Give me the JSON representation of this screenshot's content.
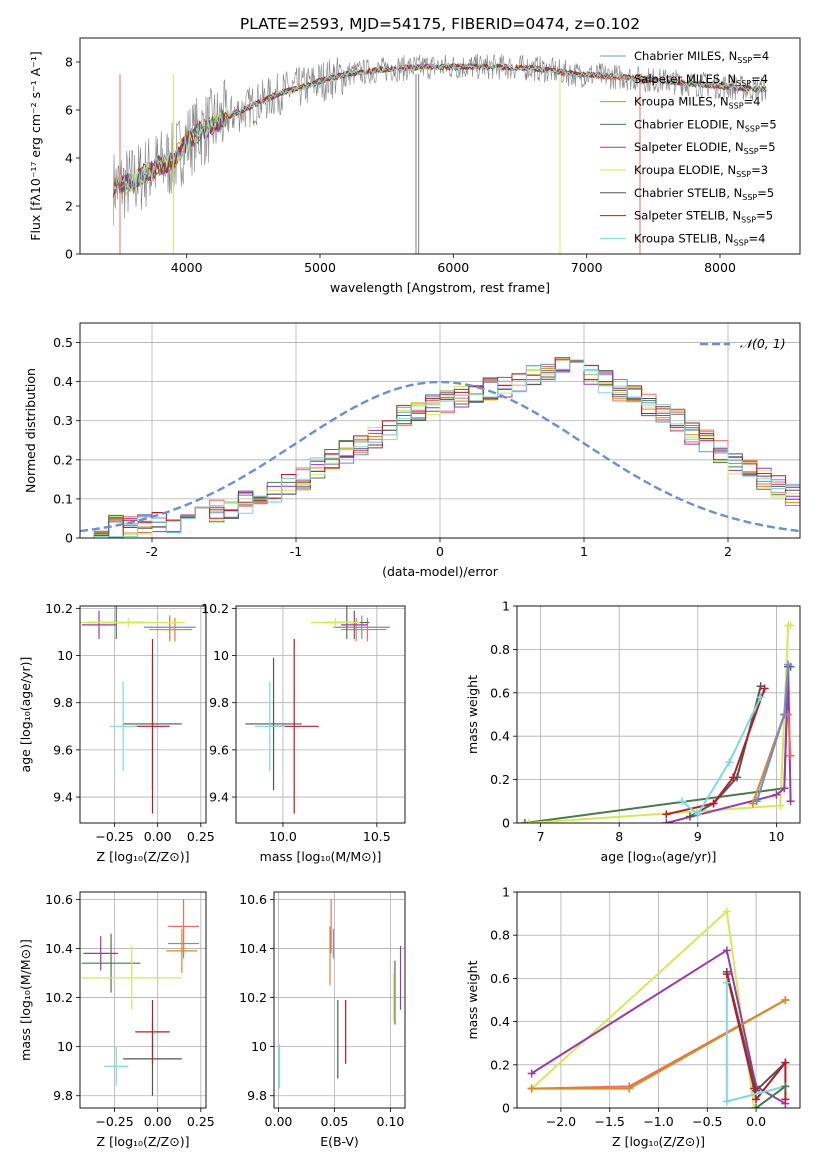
{
  "title": "PLATE=2593, MJD=54175, FIBERID=0474, z=0.102",
  "series_colors": {
    "Chabrier MILES": "#6c8fd0",
    "Salpeter MILES": "#e8735a",
    "Kroupa MILES": "#d98a2a",
    "Chabrier ELODIE": "#4a7a4a",
    "Salpeter ELODIE": "#9a3aa8",
    "Kroupa ELODIE": "#d4e85a",
    "Chabrier STELIB": "#555555",
    "Salpeter STELIB": "#b0202a",
    "Kroupa STELIB": "#7ed8dc",
    "data": "#808080",
    "normal": "#6a8fd8"
  },
  "chart_data": [
    {
      "id": "spectrum",
      "type": "line",
      "xlabel": "wavelength [Angstrom, rest frame]",
      "ylabel": "Flux [fλ10⁻¹⁷ erg cm⁻² s⁻¹ A⁻¹]",
      "xlim": [
        3200,
        8600
      ],
      "ylim": [
        0,
        9
      ],
      "xticks": [
        4000,
        5000,
        6000,
        7000,
        8000
      ],
      "yticks": [
        0,
        2,
        4,
        6,
        8
      ],
      "legend_position": "right",
      "legend": [
        "Chabrier MILES, N_SSP=4",
        "Salpeter MILES, N_SSP=4",
        "Kroupa MILES, N_SSP=4",
        "Chabrier ELODIE, N_SSP=5",
        "Salpeter ELODIE, N_SSP=5",
        "Kroupa ELODIE, N_SSP=3",
        "Chabrier STELIB, N_SSP=5",
        "Salpeter STELIB, N_SSP=5",
        "Kroupa STELIB, N_SSP=4"
      ],
      "model_continuum": {
        "x": [
          3450,
          3600,
          3700,
          3800,
          3900,
          4000,
          4100,
          4200,
          4300,
          4500,
          4700,
          4900,
          5000,
          5200,
          5500,
          5800,
          6000,
          6300,
          6600,
          6900,
          7200,
          7400,
          7600,
          7800,
          8000,
          8200,
          8350
        ],
        "y": [
          2.8,
          3.0,
          3.4,
          3.7,
          3.9,
          4.7,
          5.1,
          5.4,
          5.7,
          6.2,
          6.7,
          7.0,
          7.2,
          7.5,
          7.7,
          7.8,
          7.8,
          7.8,
          7.75,
          7.5,
          7.4,
          7.3,
          7.2,
          7.1,
          7.0,
          6.9,
          6.85
        ]
      },
      "vertical_spikes": [
        {
          "x": 3500,
          "y": 0,
          "series": "Salpeter MILES"
        },
        {
          "x": 3900,
          "y": 0,
          "series": "Kroupa ELODIE"
        },
        {
          "x": 5720,
          "y": 0,
          "series": "data"
        },
        {
          "x": 5740,
          "y": 0,
          "series": "data"
        },
        {
          "x": 6800,
          "y": 0,
          "series": "Kroupa ELODIE"
        },
        {
          "x": 7400,
          "y": 0,
          "series": "Salpeter MILES"
        }
      ]
    },
    {
      "id": "residual_hist",
      "type": "step",
      "xlabel": "(data-model)/error",
      "ylabel": "Normed distribution",
      "xlim": [
        -2.5,
        2.5
      ],
      "ylim": [
        0,
        0.55
      ],
      "xticks": [
        -2,
        -1,
        0,
        1,
        2
      ],
      "yticks": [
        0.0,
        0.1,
        0.2,
        0.3,
        0.4,
        0.5
      ],
      "legend": [
        "𝒩(0, 1)"
      ],
      "legend_position": "top-right",
      "bin_width": 0.1,
      "bin_start": -2.5,
      "histogram_envelope": [
        0.02,
        0.02,
        0.03,
        0.03,
        0.04,
        0.04,
        0.04,
        0.05,
        0.06,
        0.07,
        0.08,
        0.09,
        0.1,
        0.12,
        0.14,
        0.15,
        0.18,
        0.2,
        0.22,
        0.24,
        0.26,
        0.28,
        0.31,
        0.33,
        0.34,
        0.35,
        0.36,
        0.37,
        0.38,
        0.39,
        0.4,
        0.42,
        0.43,
        0.44,
        0.43,
        0.42,
        0.4,
        0.38,
        0.36,
        0.34,
        0.32,
        0.3,
        0.27,
        0.25,
        0.22,
        0.19,
        0.17,
        0.15,
        0.13,
        0.11,
        0.09
      ]
    },
    {
      "id": "age_vs_Z",
      "type": "errorbar",
      "xlabel": "Z [log₁₀(Z/Z⊙)]",
      "ylabel": "age  [log₁₀(age/yr)]",
      "xlim": [
        -0.45,
        0.28
      ],
      "ylim": [
        9.29,
        10.21
      ],
      "xticks": [
        -0.25,
        0.0,
        0.25
      ],
      "xticklabels": [
        "−0.25",
        "0.00",
        "0.25"
      ],
      "yticks": [
        9.4,
        9.6,
        9.8,
        10.0,
        10.2
      ],
      "points": [
        {
          "series": "Chabrier MILES",
          "x": 0.07,
          "y": 10.12,
          "xerr": 0.15,
          "yerr": 0.05
        },
        {
          "series": "Salpeter MILES",
          "x": 0.1,
          "y": 10.11,
          "xerr": 0.1,
          "yerr": 0.05
        },
        {
          "series": "Kroupa MILES",
          "x": 0.07,
          "y": 10.11,
          "xerr": 0.12,
          "yerr": 0.05
        },
        {
          "series": "Chabrier ELODIE",
          "x": -0.24,
          "y": 10.14,
          "xerr": 0.17,
          "yerr": 0.07
        },
        {
          "series": "Salpeter ELODIE",
          "x": -0.34,
          "y": 10.13,
          "xerr": 0.1,
          "yerr": 0.06
        },
        {
          "series": "Kroupa ELODIE",
          "x": -0.17,
          "y": 10.14,
          "xerr": 0.33,
          "yerr": 0.02
        },
        {
          "series": "Chabrier STELIB",
          "x": -0.03,
          "y": 9.71,
          "xerr": 0.17,
          "yerr": 0.28
        },
        {
          "series": "Salpeter STELIB",
          "x": -0.03,
          "y": 9.7,
          "xerr": 0.1,
          "yerr": 0.37
        },
        {
          "series": "Kroupa STELIB",
          "x": -0.2,
          "y": 9.7,
          "xerr": 0.08,
          "yerr": 0.19
        }
      ]
    },
    {
      "id": "age_vs_mass",
      "type": "errorbar",
      "xlabel": "mass [log₁₀(M/M⊙)]",
      "ylabel": "",
      "xlim": [
        9.75,
        10.65
      ],
      "ylim": [
        9.29,
        10.21
      ],
      "xticks": [
        10.0,
        10.5
      ],
      "xticklabels": [
        "10.0",
        "10.5"
      ],
      "yticks": [
        9.4,
        9.6,
        9.8,
        10.0,
        10.2
      ],
      "points": [
        {
          "series": "Chabrier MILES",
          "x": 10.42,
          "y": 10.12,
          "xerr": 0.15,
          "yerr": 0.05
        },
        {
          "series": "Salpeter MILES",
          "x": 10.45,
          "y": 10.11,
          "xerr": 0.1,
          "yerr": 0.05
        },
        {
          "series": "Kroupa MILES",
          "x": 10.39,
          "y": 10.11,
          "xerr": 0.08,
          "yerr": 0.05
        },
        {
          "series": "Chabrier ELODIE",
          "x": 10.34,
          "y": 10.14,
          "xerr": 0.12,
          "yerr": 0.07
        },
        {
          "series": "Salpeter ELODIE",
          "x": 10.38,
          "y": 10.13,
          "xerr": 0.07,
          "yerr": 0.06
        },
        {
          "series": "Kroupa ELODIE",
          "x": 10.28,
          "y": 10.14,
          "xerr": 0.13,
          "yerr": 0.02
        },
        {
          "series": "Chabrier STELIB",
          "x": 9.95,
          "y": 9.71,
          "xerr": 0.15,
          "yerr": 0.28
        },
        {
          "series": "Salpeter STELIB",
          "x": 10.06,
          "y": 9.7,
          "xerr": 0.13,
          "yerr": 0.37
        },
        {
          "series": "Kroupa STELIB",
          "x": 9.93,
          "y": 9.7,
          "xerr": 0.08,
          "yerr": 0.19
        }
      ]
    },
    {
      "id": "mass_weight_vs_age",
      "type": "line",
      "xlabel": "age  [log₁₀(age/yr)]",
      "ylabel": "mass weight",
      "xlim": [
        6.7,
        10.3
      ],
      "ylim": [
        0,
        1.0
      ],
      "xticks": [
        7,
        8,
        9,
        10
      ],
      "yticks": [
        0.0,
        0.2,
        0.4,
        0.6,
        0.8,
        1.0
      ],
      "series": [
        {
          "name": "Chabrier ELODIE",
          "x": [
            6.8,
            10.1,
            10.15,
            10.18
          ],
          "y": [
            0.0,
            0.16,
            0.72,
            0.72
          ]
        },
        {
          "name": "Kroupa ELODIE",
          "x": [
            6.85,
            10.05,
            10.15,
            10.18
          ],
          "y": [
            0.0,
            0.08,
            0.91,
            0.91
          ]
        },
        {
          "name": "Salpeter ELODIE",
          "x": [
            8.6,
            10.0,
            10.1,
            10.15,
            10.18
          ],
          "y": [
            0.0,
            0.13,
            0.16,
            0.72,
            0.1
          ]
        },
        {
          "name": "Chabrier STELIB",
          "x": [
            8.9,
            9.2,
            9.5,
            9.8
          ],
          "y": [
            0.03,
            0.09,
            0.21,
            0.63
          ]
        },
        {
          "name": "Salpeter STELIB",
          "x": [
            8.6,
            9.2,
            9.45,
            9.85
          ],
          "y": [
            0.04,
            0.09,
            0.21,
            0.62
          ]
        },
        {
          "name": "Kroupa STELIB",
          "x": [
            8.8,
            9.0,
            9.4,
            9.8
          ],
          "y": [
            0.1,
            0.04,
            0.28,
            0.58
          ]
        },
        {
          "name": "Salpeter MILES",
          "x": [
            9.7,
            10.1,
            10.15,
            10.18
          ],
          "y": [
            0.09,
            0.5,
            0.5,
            0.31
          ]
        },
        {
          "name": "Kroupa MILES",
          "x": [
            9.7,
            10.1,
            10.15
          ],
          "y": [
            0.09,
            0.5,
            0.73
          ]
        },
        {
          "name": "Chabrier MILES",
          "x": [
            9.75,
            10.1,
            10.15
          ],
          "y": [
            0.1,
            0.5,
            0.73
          ]
        }
      ]
    },
    {
      "id": "mass_vs_Z",
      "type": "errorbar",
      "xlabel": "Z [log₁₀(Z/Z⊙)]",
      "ylabel": "mass [log₁₀(M/M⊙)]",
      "xlim": [
        -0.45,
        0.28
      ],
      "ylim": [
        9.75,
        10.63
      ],
      "xticks": [
        -0.25,
        0.0,
        0.25
      ],
      "xticklabels": [
        "−0.25",
        "0.00",
        "0.25"
      ],
      "yticks": [
        9.8,
        10.0,
        10.2,
        10.4,
        10.6
      ],
      "points": [
        {
          "series": "Chabrier MILES",
          "x": 0.15,
          "y": 10.42,
          "xerr": 0.09,
          "yerr": 0.06
        },
        {
          "series": "Salpeter MILES",
          "x": 0.15,
          "y": 10.49,
          "xerr": 0.09,
          "yerr": 0.11
        },
        {
          "series": "Kroupa MILES",
          "x": 0.14,
          "y": 10.39,
          "xerr": 0.09,
          "yerr": 0.09
        },
        {
          "series": "Chabrier ELODIE",
          "x": -0.27,
          "y": 10.34,
          "xerr": 0.17,
          "yerr": 0.12
        },
        {
          "series": "Salpeter ELODIE",
          "x": -0.33,
          "y": 10.38,
          "xerr": 0.1,
          "yerr": 0.07
        },
        {
          "series": "Kroupa ELODIE",
          "x": -0.15,
          "y": 10.28,
          "xerr": 0.29,
          "yerr": 0.13
        },
        {
          "series": "Chabrier STELIB",
          "x": -0.03,
          "y": 9.95,
          "xerr": 0.17,
          "yerr": 0.15
        },
        {
          "series": "Salpeter STELIB",
          "x": -0.03,
          "y": 10.06,
          "xerr": 0.1,
          "yerr": 0.13
        },
        {
          "series": "Kroupa STELIB",
          "x": -0.24,
          "y": 9.92,
          "xerr": 0.07,
          "yerr": 0.08
        }
      ]
    },
    {
      "id": "mass_vs_EBV",
      "type": "errorbar",
      "xlabel": "E(B-V)",
      "ylabel": "",
      "xlim": [
        -0.004,
        0.113
      ],
      "ylim": [
        9.75,
        10.63
      ],
      "xticks": [
        0.0,
        0.05,
        0.1
      ],
      "xticklabels": [
        "0.00",
        "0.05",
        "0.10"
      ],
      "yticks": [
        9.8,
        10.0,
        10.2,
        10.4,
        10.6
      ],
      "points": [
        {
          "series": "Chabrier MILES",
          "x": 0.049,
          "y": 10.42,
          "xerr": 0,
          "yerr": 0.06
        },
        {
          "series": "Salpeter MILES",
          "x": 0.047,
          "y": 10.49,
          "xerr": 0,
          "yerr": 0.11
        },
        {
          "series": "Kroupa MILES",
          "x": 0.046,
          "y": 10.37,
          "xerr": 0,
          "yerr": 0.12
        },
        {
          "series": "Chabrier ELODIE",
          "x": 0.104,
          "y": 10.22,
          "xerr": 0,
          "yerr": 0.13
        },
        {
          "series": "Salpeter ELODIE",
          "x": 0.109,
          "y": 10.28,
          "xerr": 0,
          "yerr": 0.13
        },
        {
          "series": "Kroupa ELODIE",
          "x": 0.103,
          "y": 10.2,
          "xerr": 0,
          "yerr": 0.1
        },
        {
          "series": "Chabrier STELIB",
          "x": 0.053,
          "y": 10.03,
          "xerr": 0,
          "yerr": 0.16
        },
        {
          "series": "Salpeter STELIB",
          "x": 0.06,
          "y": 10.06,
          "xerr": 0,
          "yerr": 0.13
        },
        {
          "series": "Kroupa STELIB",
          "x": 0.001,
          "y": 9.92,
          "xerr": 0,
          "yerr": 0.09
        }
      ]
    },
    {
      "id": "mass_weight_vs_Z",
      "type": "line",
      "xlabel": "Z [log₁₀(Z/Z⊙)]",
      "ylabel": "mass weight",
      "xlim": [
        -2.45,
        0.45
      ],
      "ylim": [
        0,
        1.0
      ],
      "xticks": [
        -2.0,
        -1.5,
        -1.0,
        -0.5,
        0.0
      ],
      "xticklabels": [
        "−2.0",
        "−1.5",
        "−1.0",
        "−0.5",
        "0.0"
      ],
      "yticks": [
        0.0,
        0.2,
        0.4,
        0.6,
        0.8,
        1.0
      ],
      "series": [
        {
          "name": "Kroupa ELODIE",
          "x": [
            -2.3,
            -0.3,
            -0.02
          ],
          "y": [
            0.09,
            0.91,
            0.0
          ]
        },
        {
          "name": "Salpeter ELODIE",
          "x": [
            -2.3,
            -0.3,
            0.0,
            0.3
          ],
          "y": [
            0.16,
            0.73,
            0.1,
            0.02
          ]
        },
        {
          "name": "Salpeter MILES",
          "x": [
            -2.3,
            -1.3,
            0.3
          ],
          "y": [
            0.09,
            0.1,
            0.5
          ]
        },
        {
          "name": "Kroupa MILES",
          "x": [
            -2.3,
            -1.3,
            0.3
          ],
          "y": [
            0.09,
            0.09,
            0.5
          ]
        },
        {
          "name": "Chabrier STELIB",
          "x": [
            -0.3,
            0.0,
            0.3
          ],
          "y": [
            0.63,
            0.08,
            0.21
          ]
        },
        {
          "name": "Salpeter STELIB",
          "x": [
            -0.3,
            -0.02,
            0.0,
            0.3,
            0.3
          ],
          "y": [
            0.62,
            0.09,
            0.04,
            0.21,
            0.04
          ]
        },
        {
          "name": "Kroupa STELIB",
          "x": [
            -0.3,
            -0.3,
            0.3
          ],
          "y": [
            0.58,
            0.03,
            0.1
          ]
        },
        {
          "name": "Chabrier ELODIE",
          "x": [
            0.0,
            0.3
          ],
          "y": [
            0.0,
            0.1
          ]
        }
      ]
    }
  ]
}
